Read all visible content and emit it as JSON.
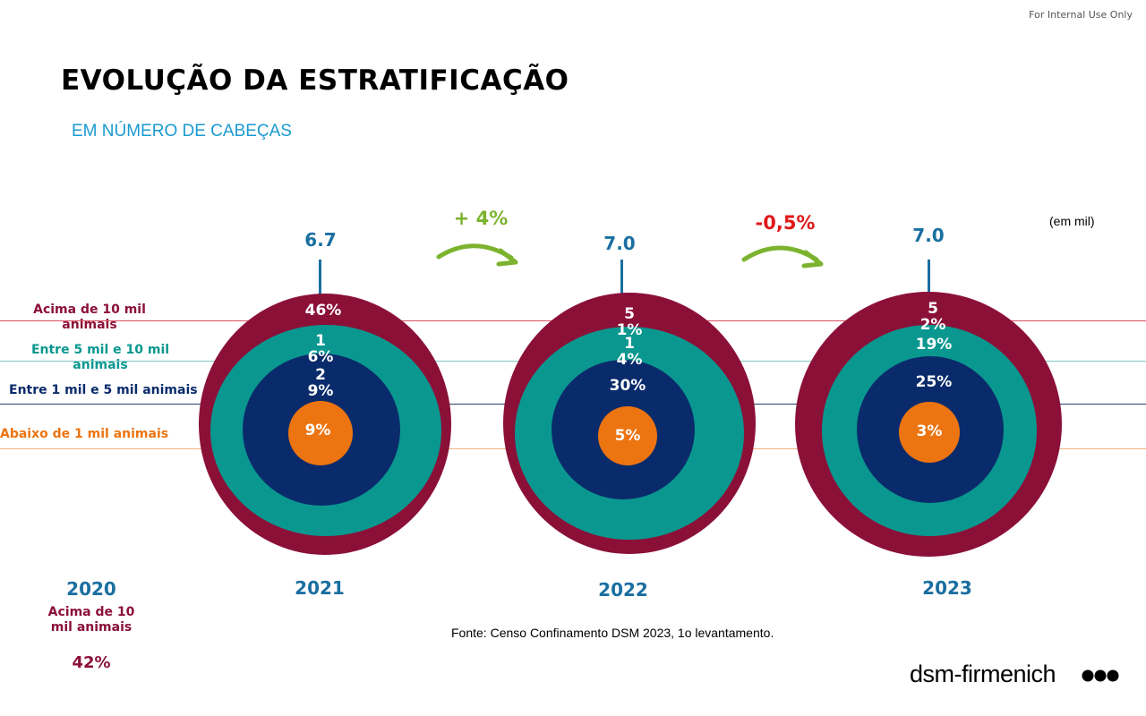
{
  "header": {
    "internal": "For Internal Use Only",
    "title": "EVOLUÇÃO DA ESTRATIFICAÇÃO",
    "subtitle": "EM NÚMERO DE CABEÇAS",
    "unit": "(em mil)"
  },
  "chart_data": {
    "type": "concentric-rings",
    "unit": "(em mil)",
    "categories": [
      {
        "label": "Acima de 10 mil animais",
        "color": "#8b1038"
      },
      {
        "label": "Entre 5 mil e 10 mil animais",
        "color": "#0a978f"
      },
      {
        "label": "Entre 1 mil e 5 mil animais",
        "color": "#0a2b6b"
      },
      {
        "label": "Abaixo de 1 mil animais",
        "color": "#ec7411"
      }
    ],
    "years": [
      {
        "year": "2021",
        "total": "6.7",
        "values": [
          "46%",
          "16%",
          "29%",
          "9%"
        ]
      },
      {
        "year": "2022",
        "total": "7.0",
        "values": [
          "51%",
          "14%",
          "30%",
          "5%"
        ]
      },
      {
        "year": "2023",
        "total": "7.0",
        "values": [
          "52%",
          "19%",
          "25%",
          "3%"
        ]
      }
    ],
    "changes": [
      {
        "label": "+ 4%",
        "color": "#7cb32e"
      },
      {
        "label": "-0,5%",
        "color": "#e01818"
      }
    ],
    "reference_2020": {
      "year": "2020",
      "category": "Acima de 10 mil animais",
      "value": "42%"
    }
  },
  "colors": {
    "accent_blue": "#1a6fa0",
    "subtitle_blue": "#1a9ad0",
    "arrow_green": "#7cb32e"
  },
  "footer": {
    "source": "Fonte: Censo Confinamento DSM 2023, 1o levantamento.",
    "brand": "dsm-firmenich"
  }
}
